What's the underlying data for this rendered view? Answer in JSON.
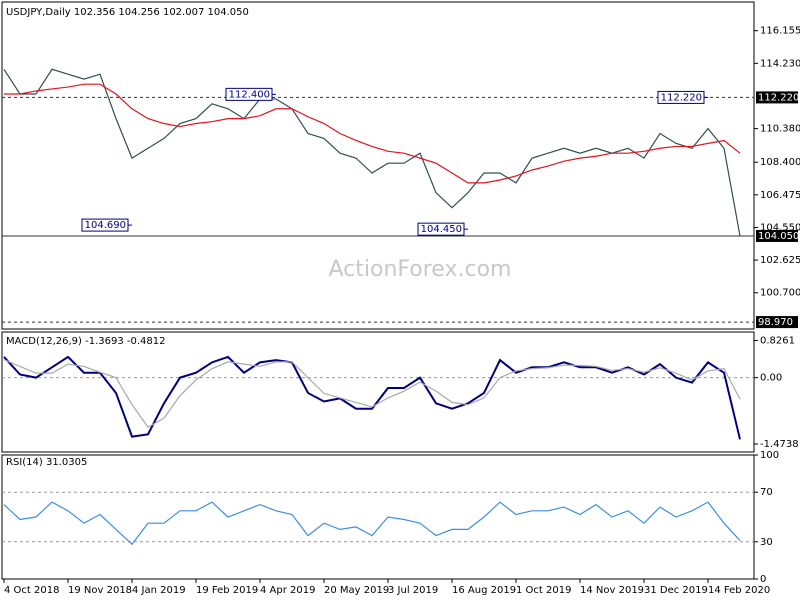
{
  "chart_data": [
    {
      "type": "line",
      "title": "USDJPY,Daily 102.356 104.256 102.007 104.050",
      "watermark": "ActionForex.com",
      "ylim": [
        98.68,
        117.67
      ],
      "yticks": [
        116.155,
        {
          "value": 114.23,
          "label": "114.230"
        },
        {
          "value": 110.38,
          "label": "110.380"
        },
        {
          "value": 108.4,
          "label": "108.400"
        },
        106.475,
        {
          "value": 104.55,
          "label": "104.550"
        },
        102.625,
        {
          "value": 100.7,
          "label": "100.700"
        }
      ],
      "levels": [
        {
          "value": 112.22,
          "label": "112.220",
          "dashed": true
        },
        {
          "value": 104.05,
          "label": "104.050",
          "dashed": false
        },
        {
          "value": 98.97,
          "label": "98.970",
          "dashed": true
        }
      ],
      "annotations": [
        {
          "value": 104.69,
          "label": "104.690",
          "index": 8
        },
        {
          "value": 112.4,
          "label": "112.400",
          "index": 17
        },
        {
          "value": 104.45,
          "label": "104.450",
          "index": 29
        },
        {
          "value": 112.22,
          "label": "112.220",
          "index": 44
        }
      ],
      "series": [
        {
          "color": "#2f4f4f",
          "values": [
            113.88,
            112.42,
            112.42,
            113.88,
            113.59,
            113.3,
            113.59,
            110.97,
            108.64,
            109.22,
            109.8,
            110.68,
            110.97,
            111.84,
            111.55,
            110.97,
            112.13,
            112.13,
            111.55,
            110.09,
            109.8,
            108.93,
            108.64,
            107.76,
            108.34,
            108.34,
            108.93,
            106.6,
            105.72,
            106.6,
            107.76,
            107.76,
            107.18,
            108.64,
            108.93,
            109.22,
            108.93,
            109.22,
            108.93,
            109.22,
            108.64,
            110.09,
            109.51,
            109.22,
            110.38,
            109.22,
            104.05
          ]
        },
        {
          "color": "#e0141e",
          "values": [
            112.42,
            112.42,
            112.6,
            112.72,
            112.83,
            113.0,
            113.0,
            112.42,
            111.55,
            110.97,
            110.68,
            110.5,
            110.68,
            110.79,
            110.97,
            110.97,
            111.14,
            111.55,
            111.55,
            111.08,
            110.68,
            110.09,
            109.68,
            109.33,
            109.04,
            108.93,
            108.64,
            108.34,
            107.76,
            107.18,
            107.18,
            107.35,
            107.59,
            107.94,
            108.17,
            108.46,
            108.64,
            108.75,
            108.93,
            108.93,
            109.04,
            109.22,
            109.33,
            109.33,
            109.51,
            109.68,
            108.93
          ]
        }
      ]
    },
    {
      "type": "line",
      "title": "MACD(12,26,9) -1.3693 -0.4812",
      "ylim": [
        -1.63,
        0.97
      ],
      "yticks": [
        0.8261,
        {
          "value": 0,
          "label": "0.00"
        },
        -1.4738
      ],
      "levels": [
        0
      ],
      "series": [
        {
          "color": "#00007f",
          "values": [
            0.46,
            0.07,
            0,
            0.23,
            0.46,
            0.11,
            0.11,
            -0.34,
            -1.31,
            -1.26,
            -0.57,
            0,
            0.11,
            0.34,
            0.46,
            0.11,
            0.34,
            0.39,
            0.34,
            -0.34,
            -0.53,
            -0.46,
            -0.69,
            -0.69,
            -0.23,
            -0.23,
            0,
            -0.57,
            -0.69,
            -0.57,
            -0.34,
            0.39,
            0.11,
            0.23,
            0.23,
            0.34,
            0.23,
            0.23,
            0.11,
            0.23,
            0.07,
            0.3,
            0,
            -0.11,
            0.34,
            0.11,
            -1.37
          ]
        },
        {
          "color": "#a9a9a9",
          "values": [
            0.4,
            0.25,
            0.1,
            0.1,
            0.3,
            0.25,
            0.12,
            0,
            -0.6,
            -1.1,
            -0.9,
            -0.4,
            -0.05,
            0.2,
            0.35,
            0.3,
            0.25,
            0.35,
            0.35,
            0,
            -0.35,
            -0.45,
            -0.55,
            -0.65,
            -0.45,
            -0.3,
            -0.1,
            -0.3,
            -0.55,
            -0.6,
            -0.45,
            0,
            0.15,
            0.2,
            0.22,
            0.28,
            0.27,
            0.25,
            0.16,
            0.2,
            0.12,
            0.22,
            0.1,
            -0.05,
            0.15,
            0.2,
            -0.48
          ]
        }
      ]
    },
    {
      "type": "line",
      "title": "RSI(14) 31.0305",
      "ylim": [
        0,
        100
      ],
      "yticks": [
        100,
        70,
        30,
        0
      ],
      "levels": [
        70,
        30
      ],
      "categories": [
        "4 Oct 2018",
        null,
        null,
        null,
        "19 Nov 2018",
        null,
        null,
        null,
        "4 Jan 2019",
        null,
        null,
        null,
        "19 Feb 2019",
        null,
        null,
        null,
        "4 Apr 2019",
        null,
        null,
        null,
        "20 May 2019",
        null,
        null,
        null,
        "3 Jul 2019",
        null,
        null,
        null,
        "16 Aug 2019",
        null,
        null,
        null,
        "1 Oct 2019",
        null,
        null,
        null,
        "14 Nov 2019",
        null,
        null,
        null,
        "31 Dec 2019",
        null,
        null,
        null,
        "14 Feb 2020",
        null,
        null
      ],
      "series": [
        {
          "color": "#3d8fe0",
          "values": [
            60,
            48,
            50,
            62,
            55,
            45,
            52,
            40,
            28,
            45,
            45,
            55,
            55,
            62,
            50,
            55,
            60,
            55,
            52,
            35,
            45,
            40,
            42,
            35,
            50,
            48,
            45,
            35,
            40,
            40,
            50,
            62,
            52,
            55,
            55,
            58,
            52,
            60,
            50,
            55,
            45,
            58,
            50,
            55,
            62,
            45,
            31.03
          ]
        }
      ]
    }
  ]
}
